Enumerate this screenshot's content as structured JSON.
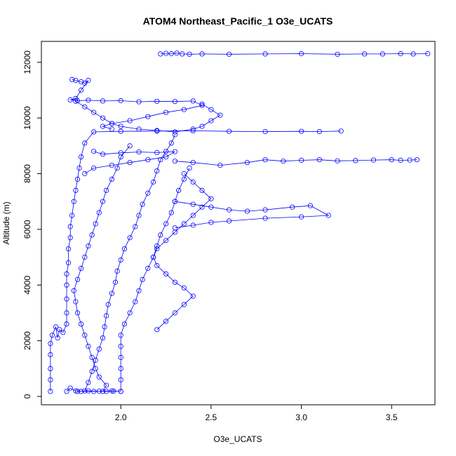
{
  "chart_data": {
    "type": "scatter",
    "title": "ATOM4 Northeast_Pacific_1 O3e_UCATS",
    "xlabel": "O3e_UCATS",
    "ylabel": "Altitude (m)",
    "xlim": [
      1.56,
      3.74
    ],
    "ylim": [
      -300,
      12750
    ],
    "xticks": [
      2.0,
      2.5,
      3.0,
      3.5
    ],
    "xtick_labels": [
      "2.0",
      "2.5",
      "3.0",
      "3.5"
    ],
    "yticks": [
      0,
      2000,
      4000,
      6000,
      8000,
      10000,
      12000
    ],
    "ytick_labels": [
      "0",
      "2000",
      "4000",
      "6000",
      "8000",
      "10000",
      "12000"
    ],
    "grid": false,
    "legend": "none",
    "marker": "open-circle",
    "connected": true,
    "series_color": "#0000ff",
    "series": [
      {
        "points": [
          [
            1.61,
            180
          ],
          [
            1.61,
            600
          ],
          [
            1.61,
            1000
          ],
          [
            1.61,
            1500
          ],
          [
            1.61,
            1900
          ],
          [
            1.62,
            2200
          ],
          [
            1.64,
            2500
          ],
          [
            1.65,
            2100
          ],
          [
            1.66,
            2400
          ],
          [
            1.68,
            2300
          ],
          [
            1.7,
            2600
          ],
          [
            1.7,
            3000
          ],
          [
            1.7,
            3500
          ],
          [
            1.7,
            4000
          ],
          [
            1.7,
            4400
          ],
          [
            1.71,
            4800
          ],
          [
            1.71,
            5300
          ],
          [
            1.72,
            5700
          ],
          [
            1.72,
            6100
          ],
          [
            1.73,
            6500
          ],
          [
            1.74,
            7000
          ],
          [
            1.75,
            7400
          ],
          [
            1.76,
            7800
          ],
          [
            1.77,
            8200
          ],
          [
            1.78,
            8600
          ],
          [
            1.8,
            9100
          ],
          [
            1.85,
            9500
          ],
          [
            2.0,
            9520
          ],
          [
            2.2,
            9530
          ],
          [
            2.4,
            9540
          ],
          [
            2.6,
            9520
          ],
          [
            2.8,
            9510
          ],
          [
            3.0,
            9520
          ],
          [
            3.1,
            9510
          ],
          [
            3.22,
            9530
          ]
        ]
      },
      {
        "points": [
          [
            1.73,
            11380
          ],
          [
            1.75,
            11350
          ],
          [
            1.78,
            11300
          ],
          [
            1.8,
            11250
          ],
          [
            1.82,
            11350
          ],
          [
            1.78,
            11000
          ],
          [
            1.75,
            10700
          ],
          [
            1.72,
            10650
          ],
          [
            1.76,
            10620
          ],
          [
            1.82,
            10640
          ],
          [
            1.9,
            10610
          ],
          [
            2.0,
            10620
          ],
          [
            2.1,
            10580
          ],
          [
            2.2,
            10600
          ],
          [
            2.3,
            10590
          ],
          [
            2.4,
            10610
          ],
          [
            2.45,
            10450
          ],
          [
            2.35,
            10300
          ],
          [
            2.25,
            10200
          ],
          [
            2.15,
            10050
          ],
          [
            2.05,
            9900
          ],
          [
            1.95,
            9800
          ],
          [
            1.9,
            9700
          ],
          [
            1.95,
            9600
          ]
        ]
      },
      {
        "points": [
          [
            2.22,
            12300
          ],
          [
            2.25,
            12320
          ],
          [
            2.28,
            12310
          ],
          [
            2.31,
            12330
          ],
          [
            2.34,
            12300
          ],
          [
            2.38,
            12290
          ],
          [
            2.45,
            12300
          ],
          [
            2.6,
            12290
          ],
          [
            2.8,
            12300
          ],
          [
            3.0,
            12310
          ],
          [
            3.2,
            12290
          ],
          [
            3.35,
            12300
          ],
          [
            3.45,
            12300
          ],
          [
            3.55,
            12310
          ],
          [
            3.62,
            12300
          ],
          [
            3.7,
            12310
          ]
        ]
      },
      {
        "points": [
          [
            2.3,
            8450
          ],
          [
            2.4,
            8400
          ],
          [
            2.55,
            8300
          ],
          [
            2.7,
            8400
          ],
          [
            2.8,
            8500
          ],
          [
            2.9,
            8450
          ],
          [
            3.0,
            8480
          ],
          [
            3.1,
            8500
          ],
          [
            3.2,
            8460
          ],
          [
            3.3,
            8470
          ],
          [
            3.4,
            8490
          ],
          [
            3.5,
            8500
          ],
          [
            3.55,
            8480
          ],
          [
            3.6,
            8490
          ],
          [
            3.64,
            8500
          ]
        ]
      },
      {
        "points": [
          [
            2.3,
            7000
          ],
          [
            2.4,
            6900
          ],
          [
            2.5,
            6800
          ],
          [
            2.6,
            6700
          ],
          [
            2.7,
            6650
          ],
          [
            2.8,
            6700
          ],
          [
            2.95,
            6800
          ],
          [
            3.05,
            6850
          ],
          [
            3.15,
            6500
          ],
          [
            3.0,
            6450
          ],
          [
            2.8,
            6400
          ],
          [
            2.6,
            6300
          ],
          [
            2.5,
            6250
          ],
          [
            2.4,
            6150
          ],
          [
            2.3,
            6050
          ]
        ]
      },
      {
        "points": [
          [
            1.8,
            200
          ],
          [
            1.82,
            500
          ],
          [
            1.84,
            900
          ],
          [
            1.86,
            1300
          ],
          [
            1.88,
            1700
          ],
          [
            1.9,
            2100
          ],
          [
            1.91,
            2500
          ],
          [
            1.92,
            2900
          ],
          [
            1.93,
            3300
          ],
          [
            1.95,
            3700
          ],
          [
            1.97,
            4100
          ],
          [
            1.98,
            4500
          ],
          [
            2.0,
            4900
          ],
          [
            2.02,
            5300
          ],
          [
            2.05,
            5700
          ],
          [
            2.08,
            6100
          ],
          [
            2.1,
            6500
          ],
          [
            2.12,
            6900
          ],
          [
            2.15,
            7300
          ],
          [
            2.18,
            7700
          ],
          [
            2.2,
            8100
          ],
          [
            2.22,
            8500
          ],
          [
            2.25,
            8800
          ],
          [
            2.28,
            9100
          ],
          [
            2.3,
            9400
          ]
        ]
      },
      {
        "points": [
          [
            2.0,
            180
          ],
          [
            2.0,
            600
          ],
          [
            2.0,
            1000
          ],
          [
            2.0,
            1400
          ],
          [
            2.0,
            1800
          ],
          [
            2.0,
            2200
          ],
          [
            2.02,
            2600
          ],
          [
            2.05,
            3000
          ],
          [
            2.08,
            3400
          ],
          [
            2.1,
            3800
          ],
          [
            2.12,
            4200
          ],
          [
            2.15,
            4600
          ],
          [
            2.18,
            5000
          ],
          [
            2.2,
            5400
          ],
          [
            2.22,
            5800
          ],
          [
            2.25,
            6200
          ],
          [
            2.28,
            6600
          ],
          [
            2.3,
            7000
          ],
          [
            2.32,
            7400
          ],
          [
            2.35,
            7800
          ],
          [
            2.38,
            8200
          ]
        ]
      },
      {
        "points": [
          [
            1.9,
            180
          ],
          [
            1.92,
            400
          ],
          [
            1.88,
            700
          ],
          [
            1.86,
            1000
          ],
          [
            1.84,
            1400
          ],
          [
            1.82,
            1800
          ],
          [
            1.8,
            2200
          ],
          [
            1.78,
            2600
          ],
          [
            1.76,
            3000
          ],
          [
            1.75,
            3400
          ],
          [
            1.74,
            3800
          ],
          [
            1.76,
            4200
          ],
          [
            1.78,
            4600
          ],
          [
            1.8,
            5000
          ],
          [
            1.82,
            5400
          ],
          [
            1.84,
            5800
          ],
          [
            1.86,
            6200
          ],
          [
            1.88,
            6600
          ],
          [
            1.9,
            7000
          ],
          [
            1.92,
            7400
          ],
          [
            1.95,
            7800
          ],
          [
            1.98,
            8200
          ],
          [
            2.0,
            8600
          ],
          [
            2.05,
            9000
          ]
        ]
      },
      {
        "points": [
          [
            2.2,
            2400
          ],
          [
            2.25,
            2700
          ],
          [
            2.3,
            3000
          ],
          [
            2.35,
            3300
          ],
          [
            2.4,
            3600
          ],
          [
            2.35,
            3900
          ],
          [
            2.3,
            4100
          ],
          [
            2.25,
            4400
          ],
          [
            2.2,
            4700
          ],
          [
            2.18,
            5000
          ],
          [
            2.2,
            5300
          ],
          [
            2.25,
            5600
          ],
          [
            2.3,
            5900
          ],
          [
            2.35,
            6200
          ],
          [
            2.4,
            6500
          ],
          [
            2.45,
            6800
          ],
          [
            2.5,
            7100
          ],
          [
            2.45,
            7400
          ],
          [
            2.4,
            7700
          ],
          [
            2.35,
            8000
          ]
        ]
      },
      {
        "points": [
          [
            1.7,
            180
          ],
          [
            1.72,
            300
          ],
          [
            1.75,
            200
          ],
          [
            1.78,
            180
          ],
          [
            1.85,
            180
          ],
          [
            1.92,
            180
          ],
          [
            1.96,
            190
          ],
          [
            2.0,
            180
          ],
          [
            1.95,
            200
          ],
          [
            1.88,
            190
          ],
          [
            1.82,
            200
          ],
          [
            1.76,
            180
          ]
        ]
      },
      {
        "points": [
          [
            1.75,
            10600
          ],
          [
            1.8,
            10400
          ],
          [
            1.85,
            10200
          ],
          [
            1.9,
            10000
          ],
          [
            1.95,
            9800
          ],
          [
            2.0,
            9700
          ],
          [
            2.1,
            9600
          ],
          [
            2.2,
            9550
          ],
          [
            2.3,
            9500
          ],
          [
            2.4,
            9600
          ],
          [
            2.45,
            9700
          ],
          [
            2.5,
            9900
          ],
          [
            2.55,
            10100
          ],
          [
            2.5,
            10300
          ],
          [
            2.45,
            10500
          ]
        ]
      },
      {
        "points": [
          [
            1.85,
            8800
          ],
          [
            1.9,
            8700
          ],
          [
            2.0,
            8750
          ],
          [
            2.1,
            8780
          ],
          [
            2.2,
            8760
          ],
          [
            2.3,
            8790
          ],
          [
            2.25,
            8600
          ],
          [
            2.15,
            8500
          ],
          [
            2.05,
            8400
          ],
          [
            1.95,
            8300
          ],
          [
            1.85,
            8200
          ],
          [
            1.8,
            8000
          ]
        ]
      }
    ]
  }
}
